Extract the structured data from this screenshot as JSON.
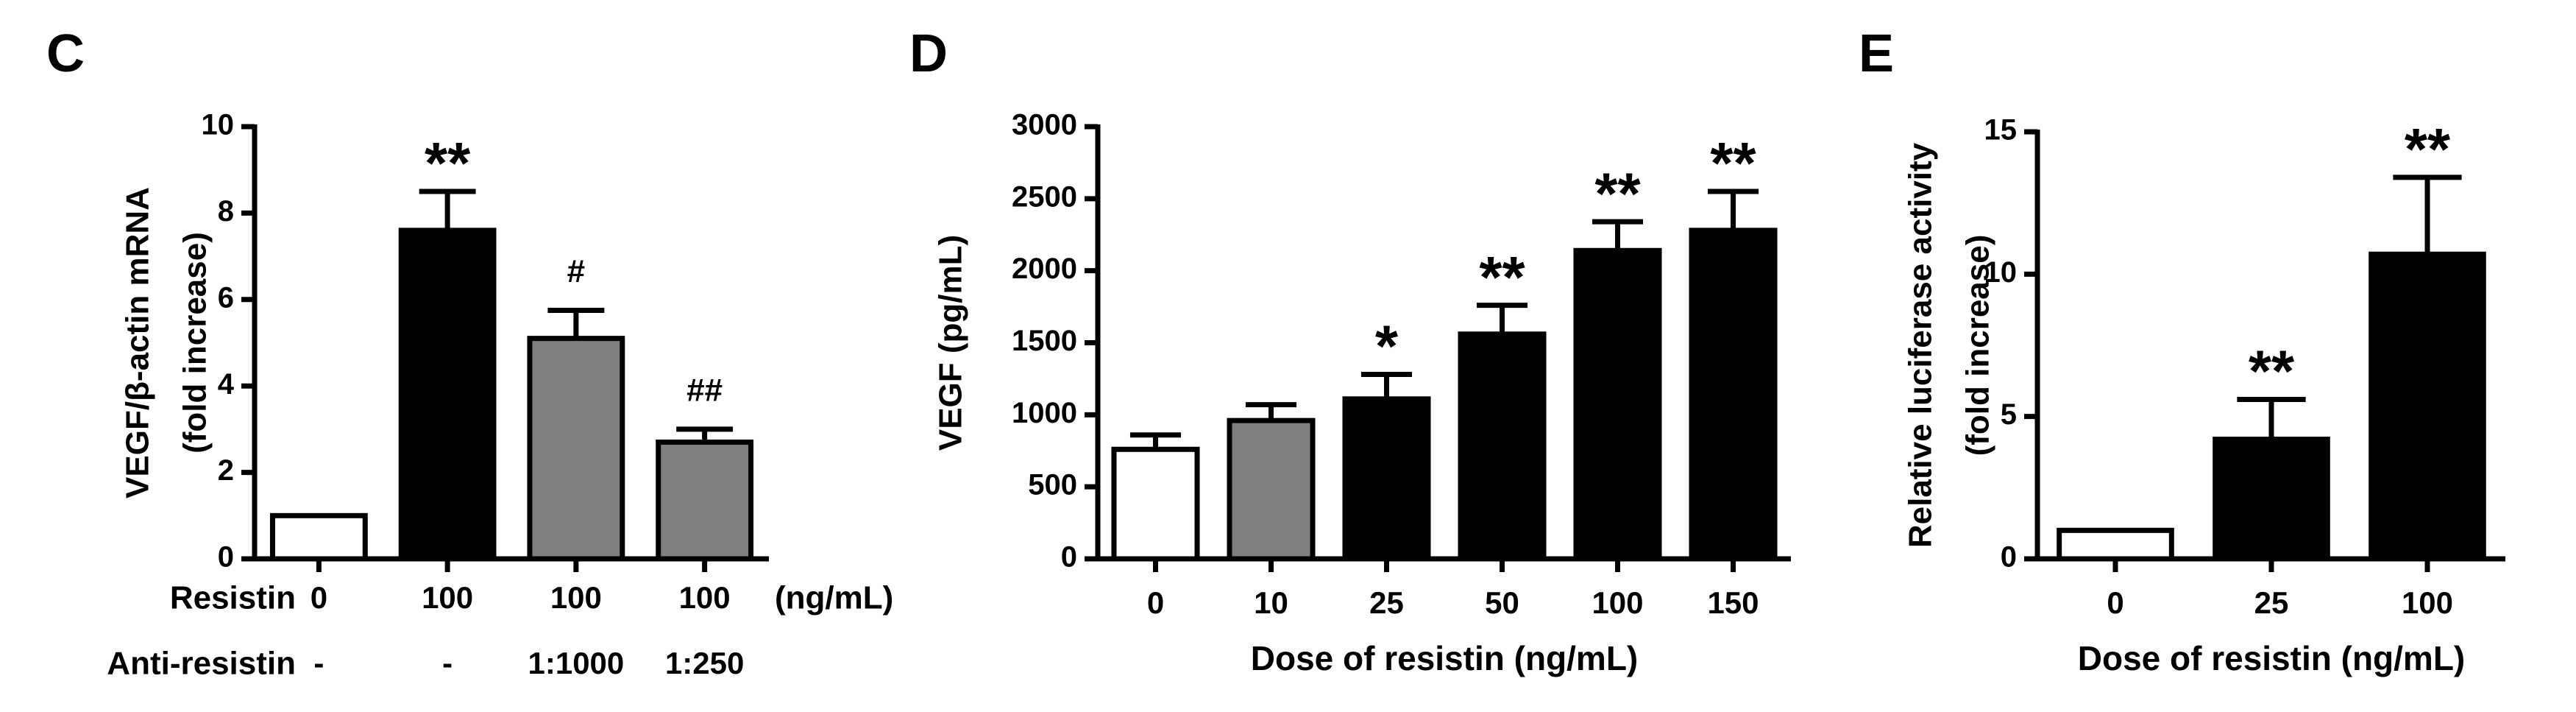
{
  "chart_data": [
    {
      "type": "bar",
      "panel": "C",
      "ylabel": [
        "VEGF/β-actin mRNA",
        "(fold increase)"
      ],
      "category_rows": [
        {
          "name": "Resistin",
          "labels": [
            "0",
            "100",
            "100",
            "100"
          ],
          "unit": "(ng/mL)"
        },
        {
          "name": "Anti-resistin",
          "labels": [
            "-",
            "-",
            "1:1000",
            "1:250"
          ]
        }
      ],
      "values": [
        1,
        7.6,
        5.1,
        2.7
      ],
      "errors": [
        0,
        0.9,
        0.65,
        0.3
      ],
      "colors": [
        "#ffffff",
        "#000000",
        "#808080",
        "#808080"
      ],
      "annotations": [
        null,
        "**",
        "#",
        "##"
      ],
      "ylim": [
        0,
        10
      ],
      "yticks": [
        0,
        2,
        4,
        6,
        8,
        10
      ]
    },
    {
      "type": "bar",
      "panel": "D",
      "ylabel": [
        "VEGF (pg/mL)"
      ],
      "xlabel": "Dose of  resistin (ng/mL)",
      "categories": [
        "0",
        "10",
        "25",
        "50",
        "100",
        "150"
      ],
      "values": [
        760,
        960,
        1110,
        1560,
        2140,
        2280
      ],
      "errors": [
        100,
        110,
        170,
        200,
        200,
        270
      ],
      "colors": [
        "#ffffff",
        "#808080",
        "#000000",
        "#000000",
        "#000000",
        "#000000"
      ],
      "annotations": [
        null,
        null,
        "*",
        "**",
        "**",
        "**"
      ],
      "ylim": [
        0,
        3000
      ],
      "yticks": [
        0,
        500,
        1000,
        1500,
        2000,
        2500,
        3000
      ]
    },
    {
      "type": "bar",
      "panel": "E",
      "ylabel": [
        "Relative luciferase activity",
        "(fold increase)"
      ],
      "xlabel": "Dose of  resistin (ng/mL)",
      "categories": [
        "0",
        "25",
        "100"
      ],
      "values": [
        1,
        4.2,
        10.7
      ],
      "errors": [
        0,
        1.4,
        2.7
      ],
      "colors": [
        "#ffffff",
        "#000000",
        "#000000"
      ],
      "annotations": [
        null,
        "**",
        "**"
      ],
      "ylim": [
        0,
        15
      ],
      "yticks": [
        0,
        5,
        10,
        15
      ]
    }
  ]
}
